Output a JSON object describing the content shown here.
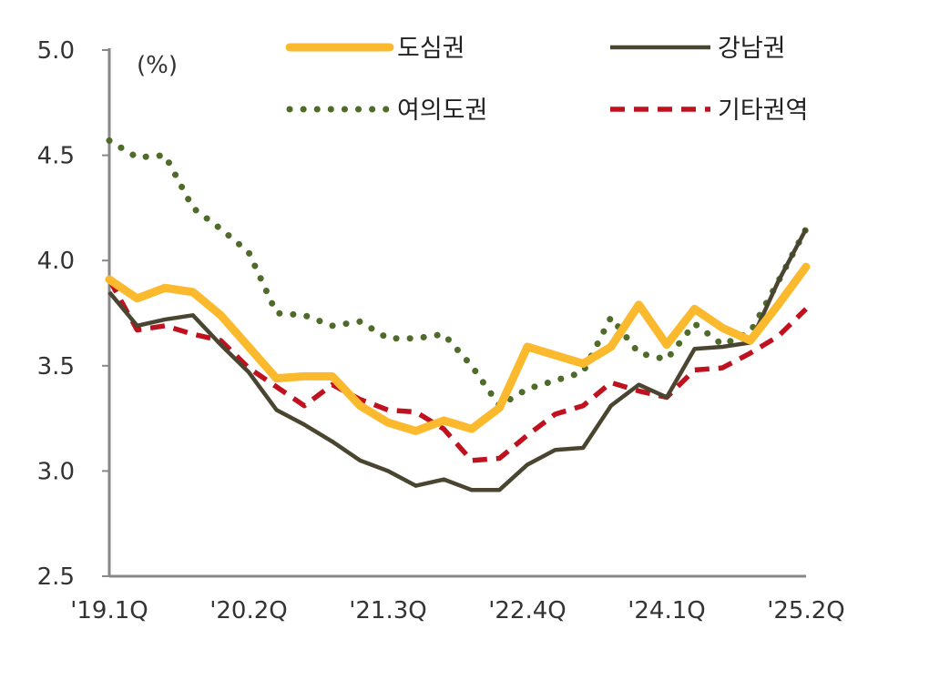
{
  "chart_data": {
    "type": "line",
    "ylabel": "(%)",
    "ylim": [
      2.5,
      5.0
    ],
    "yticks": [
      "5.0",
      "4.5",
      "4.0",
      "3.5",
      "3.0",
      "2.5"
    ],
    "categories": [
      "'19.1Q",
      "'19.2Q",
      "'19.3Q",
      "'19.4Q",
      "'20.1Q",
      "'20.2Q",
      "'20.3Q",
      "'20.4Q",
      "'21.1Q",
      "'21.2Q",
      "'21.3Q",
      "'21.4Q",
      "'22.1Q",
      "'22.2Q",
      "'22.3Q",
      "'22.4Q",
      "'23.1Q",
      "'23.2Q",
      "'23.3Q",
      "'23.4Q",
      "'24.1Q",
      "'24.2Q",
      "'24.3Q",
      "'24.4Q",
      "'25.1Q",
      "'25.2Q"
    ],
    "xtick_labels": [
      "'19.1Q",
      "'20.2Q",
      "'21.3Q",
      "'22.4Q",
      "'24.1Q",
      "'25.2Q"
    ],
    "grid": false,
    "legend": "top",
    "series": [
      {
        "name": "도심권",
        "style": "solid-thick",
        "color": "#FBBA2E",
        "values": [
          3.91,
          3.82,
          3.87,
          3.85,
          3.74,
          3.59,
          3.44,
          3.45,
          3.45,
          3.31,
          3.23,
          3.19,
          3.24,
          3.2,
          3.3,
          3.59,
          3.55,
          3.51,
          3.59,
          3.79,
          3.6,
          3.77,
          3.68,
          3.62,
          3.79,
          3.97
        ]
      },
      {
        "name": "강남권",
        "style": "solid",
        "color": "#4A4530",
        "values": [
          3.85,
          3.69,
          3.72,
          3.74,
          3.6,
          3.47,
          3.29,
          3.22,
          3.14,
          3.05,
          3.0,
          2.93,
          2.96,
          2.91,
          2.91,
          3.03,
          3.1,
          3.11,
          3.31,
          3.41,
          3.35,
          3.58,
          3.59,
          3.61,
          3.9,
          4.15
        ]
      },
      {
        "name": "여의도권",
        "style": "dotted",
        "color": "#4F6B2A",
        "values": [
          4.57,
          4.49,
          4.5,
          4.25,
          4.15,
          4.04,
          3.75,
          3.74,
          3.69,
          3.71,
          3.63,
          3.63,
          3.65,
          3.5,
          3.31,
          3.39,
          3.43,
          3.47,
          3.73,
          3.56,
          3.53,
          3.7,
          3.6,
          3.66,
          3.9,
          4.15
        ]
      },
      {
        "name": "기타권역",
        "style": "dashed",
        "color": "#C0111F",
        "values": [
          3.91,
          3.67,
          3.69,
          3.65,
          3.62,
          3.49,
          3.4,
          3.31,
          3.41,
          3.34,
          3.29,
          3.28,
          3.2,
          3.05,
          3.06,
          3.17,
          3.27,
          3.31,
          3.42,
          3.38,
          3.35,
          3.48,
          3.49,
          3.56,
          3.64,
          3.77
        ]
      }
    ]
  }
}
